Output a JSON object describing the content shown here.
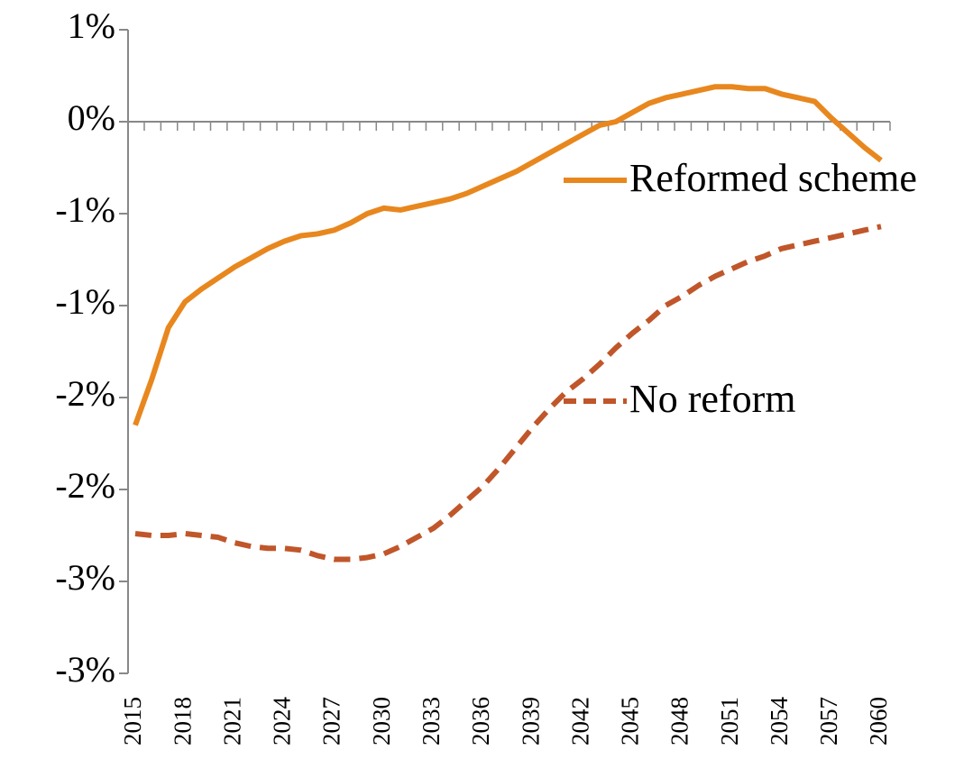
{
  "chart_data": {
    "type": "line",
    "x": [
      2015,
      2016,
      2017,
      2018,
      2019,
      2020,
      2021,
      2022,
      2023,
      2024,
      2025,
      2026,
      2027,
      2028,
      2029,
      2030,
      2031,
      2032,
      2033,
      2034,
      2035,
      2036,
      2037,
      2038,
      2039,
      2040,
      2041,
      2042,
      2043,
      2044,
      2045,
      2046,
      2047,
      2048,
      2049,
      2050,
      2051,
      2052,
      2053,
      2054,
      2055,
      2056,
      2057,
      2058,
      2059,
      2060
    ],
    "xlim": [
      2015,
      2060
    ],
    "xticks": [
      2015,
      2018,
      2021,
      2024,
      2027,
      2030,
      2033,
      2036,
      2039,
      2042,
      2045,
      2048,
      2051,
      2054,
      2057,
      2060
    ],
    "ylim": [
      -3,
      0.5
    ],
    "yticks": [
      {
        "value": 0.5,
        "label": "1%"
      },
      {
        "value": 0,
        "label": "0%"
      },
      {
        "value": -0.5,
        "label": "-1%"
      },
      {
        "value": -1,
        "label": "-1%"
      },
      {
        "value": -1.5,
        "label": "-2%"
      },
      {
        "value": -2,
        "label": "-2%"
      },
      {
        "value": -2.5,
        "label": "-3%"
      },
      {
        "value": -3,
        "label": "-3%"
      }
    ],
    "series": [
      {
        "name": "Reformed scheme",
        "color": "#e8871e",
        "dashed": false,
        "values": [
          -1.65,
          -1.4,
          -1.12,
          -0.98,
          -0.91,
          -0.85,
          -0.79,
          -0.74,
          -0.69,
          -0.65,
          -0.62,
          -0.61,
          -0.59,
          -0.55,
          -0.5,
          -0.47,
          -0.48,
          -0.46,
          -0.44,
          -0.42,
          -0.39,
          -0.35,
          -0.31,
          -0.27,
          -0.22,
          -0.17,
          -0.12,
          -0.07,
          -0.02,
          0.0,
          0.05,
          0.1,
          0.13,
          0.15,
          0.17,
          0.19,
          0.19,
          0.18,
          0.18,
          0.15,
          0.13,
          0.11,
          0.02,
          -0.06,
          -0.14,
          -0.21
        ]
      },
      {
        "name": "No reform",
        "color": "#c0562a",
        "dashed": true,
        "values": [
          -2.24,
          -2.25,
          -2.25,
          -2.24,
          -2.25,
          -2.26,
          -2.29,
          -2.31,
          -2.32,
          -2.32,
          -2.33,
          -2.36,
          -2.38,
          -2.38,
          -2.37,
          -2.35,
          -2.31,
          -2.26,
          -2.21,
          -2.14,
          -2.06,
          -1.98,
          -1.88,
          -1.77,
          -1.66,
          -1.56,
          -1.47,
          -1.4,
          -1.32,
          -1.23,
          -1.15,
          -1.08,
          -1.0,
          -0.95,
          -0.89,
          -0.84,
          -0.8,
          -0.76,
          -0.73,
          -0.69,
          -0.67,
          -0.65,
          -0.63,
          -0.61,
          -0.59,
          -0.57
        ]
      }
    ]
  }
}
